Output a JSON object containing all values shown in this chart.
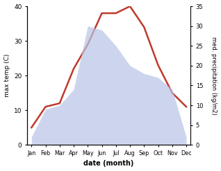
{
  "months": [
    "Jan",
    "Feb",
    "Mar",
    "Apr",
    "May",
    "Jun",
    "Jul",
    "Aug",
    "Sep",
    "Oct",
    "Nov",
    "Dec"
  ],
  "temperature": [
    5,
    11,
    12,
    22,
    29,
    38,
    38,
    40,
    34,
    23,
    15,
    11
  ],
  "precipitation": [
    2,
    9,
    10,
    14,
    30,
    29,
    25,
    20,
    18,
    17,
    14,
    2
  ],
  "temp_color": "#c0392b",
  "precip_color": "#b8c4e8",
  "temp_ylim": [
    0,
    40
  ],
  "precip_ylim": [
    0,
    35
  ],
  "temp_yticks": [
    0,
    10,
    20,
    30,
    40
  ],
  "precip_yticks": [
    0,
    5,
    10,
    15,
    20,
    25,
    30,
    35
  ],
  "ylabel_left": "max temp (C)",
  "ylabel_right": "med. precipitation (kg/m2)",
  "xlabel": "date (month)",
  "bg_color": "#ffffff",
  "line_width": 1.8
}
